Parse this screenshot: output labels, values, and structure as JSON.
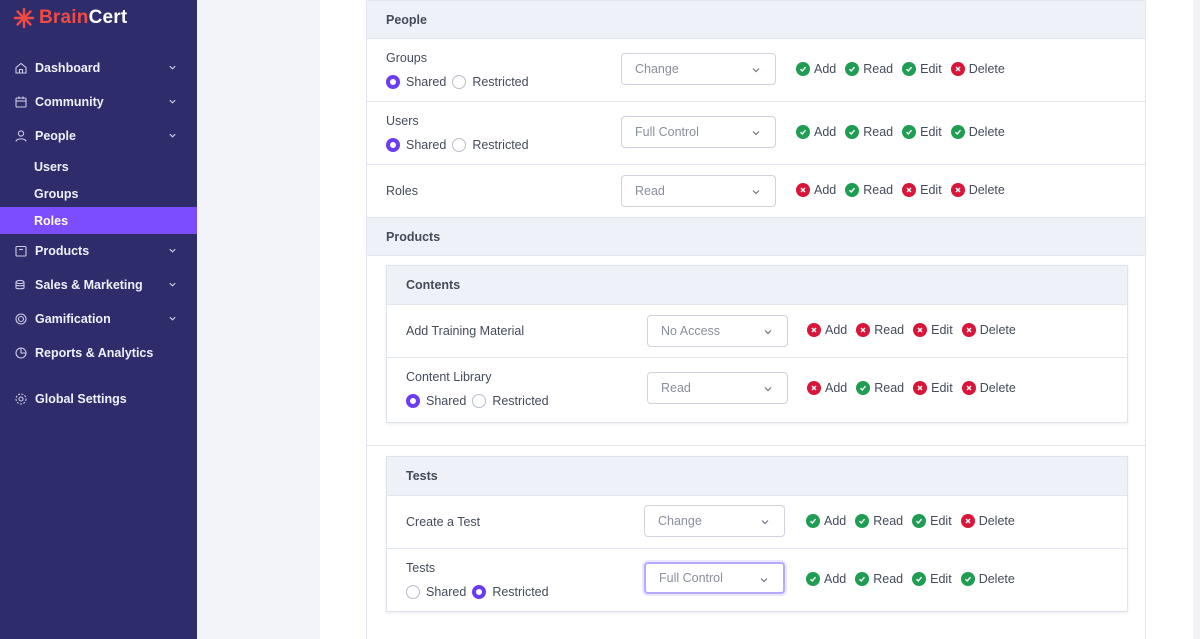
{
  "brand": {
    "part1": "Brain",
    "part2": "Cert"
  },
  "sidebar": {
    "items": [
      {
        "label": "Dashboard",
        "icon": "home-icon"
      },
      {
        "label": "Community",
        "icon": "calendar-icon"
      },
      {
        "label": "People",
        "icon": "user-icon"
      },
      {
        "label": "Users"
      },
      {
        "label": "Groups"
      },
      {
        "label": "Roles"
      },
      {
        "label": "Products",
        "icon": "box-icon"
      },
      {
        "label": "Sales & Marketing",
        "icon": "coins-icon"
      },
      {
        "label": "Gamification",
        "icon": "target-icon"
      },
      {
        "label": "Reports & Analytics",
        "icon": "pie-chart-icon"
      },
      {
        "label": "Global Settings",
        "icon": "gear-icon"
      }
    ]
  },
  "perm_labels": {
    "add": "Add",
    "read": "Read",
    "edit": "Edit",
    "delete": "Delete"
  },
  "radio_labels": {
    "shared": "Shared",
    "restricted": "Restricted"
  },
  "people": {
    "title": "People",
    "rows": [
      {
        "label": "Groups",
        "select": "Change",
        "scope": "Shared",
        "add": true,
        "read": true,
        "edit": true,
        "delete": false
      },
      {
        "label": "Users",
        "select": "Full Control",
        "scope": "Shared",
        "add": true,
        "read": true,
        "edit": true,
        "delete": true
      },
      {
        "label": "Roles",
        "select": "Read",
        "add": false,
        "read": true,
        "edit": false,
        "delete": false
      }
    ]
  },
  "products": {
    "title": "Products",
    "contents": {
      "title": "Contents",
      "rows": [
        {
          "label": "Add Training Material",
          "select": "No Access",
          "add": false,
          "read": false,
          "edit": false,
          "delete": false
        },
        {
          "label": "Content Library",
          "select": "Read",
          "scope": "Shared",
          "add": false,
          "read": true,
          "edit": false,
          "delete": false
        }
      ]
    },
    "tests": {
      "title": "Tests",
      "rows": [
        {
          "label": "Create a Test",
          "select": "Change",
          "add": true,
          "read": true,
          "edit": true,
          "delete": false
        },
        {
          "label": "Tests",
          "select": "Full Control",
          "scope": "Restricted",
          "add": true,
          "read": true,
          "edit": true,
          "delete": true
        }
      ]
    }
  },
  "colors": {
    "sidebar": "#2e2c6b",
    "active": "#7b4dff",
    "allow": "#1f9d52",
    "deny": "#d9163a",
    "radio": "#6a3df5"
  }
}
